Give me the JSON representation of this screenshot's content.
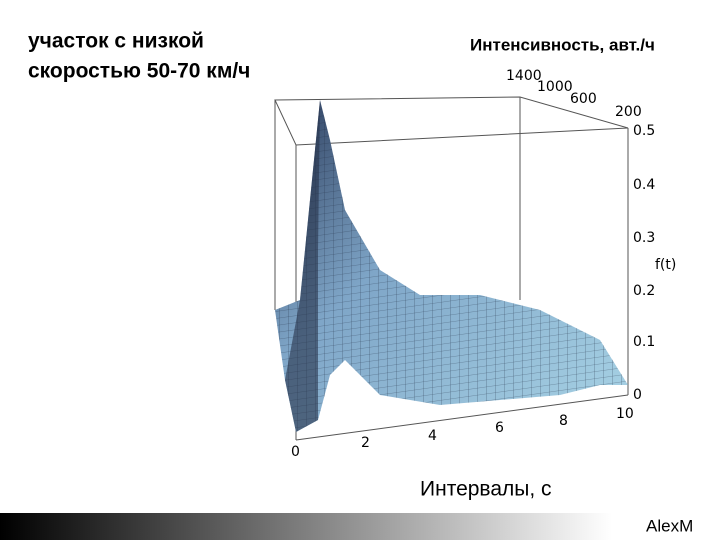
{
  "heading": [
    "участок с низкой",
    "скоростью 50-70 км/ч"
  ],
  "axes": {
    "intensity": {
      "title": "Интенсивность, авт./ч",
      "ticks": [
        "1400",
        "1000",
        "600",
        "200"
      ]
    },
    "density": {
      "title": "f(t)",
      "ticks": [
        "0.5",
        "0.4",
        "0.3",
        "0.2",
        "0.1",
        "0"
      ]
    },
    "interval": {
      "title": "Интервалы, с",
      "ticks": [
        "0",
        "2",
        "4",
        "6",
        "8",
        "10"
      ]
    }
  },
  "footer": {
    "author": "AlexM"
  }
}
